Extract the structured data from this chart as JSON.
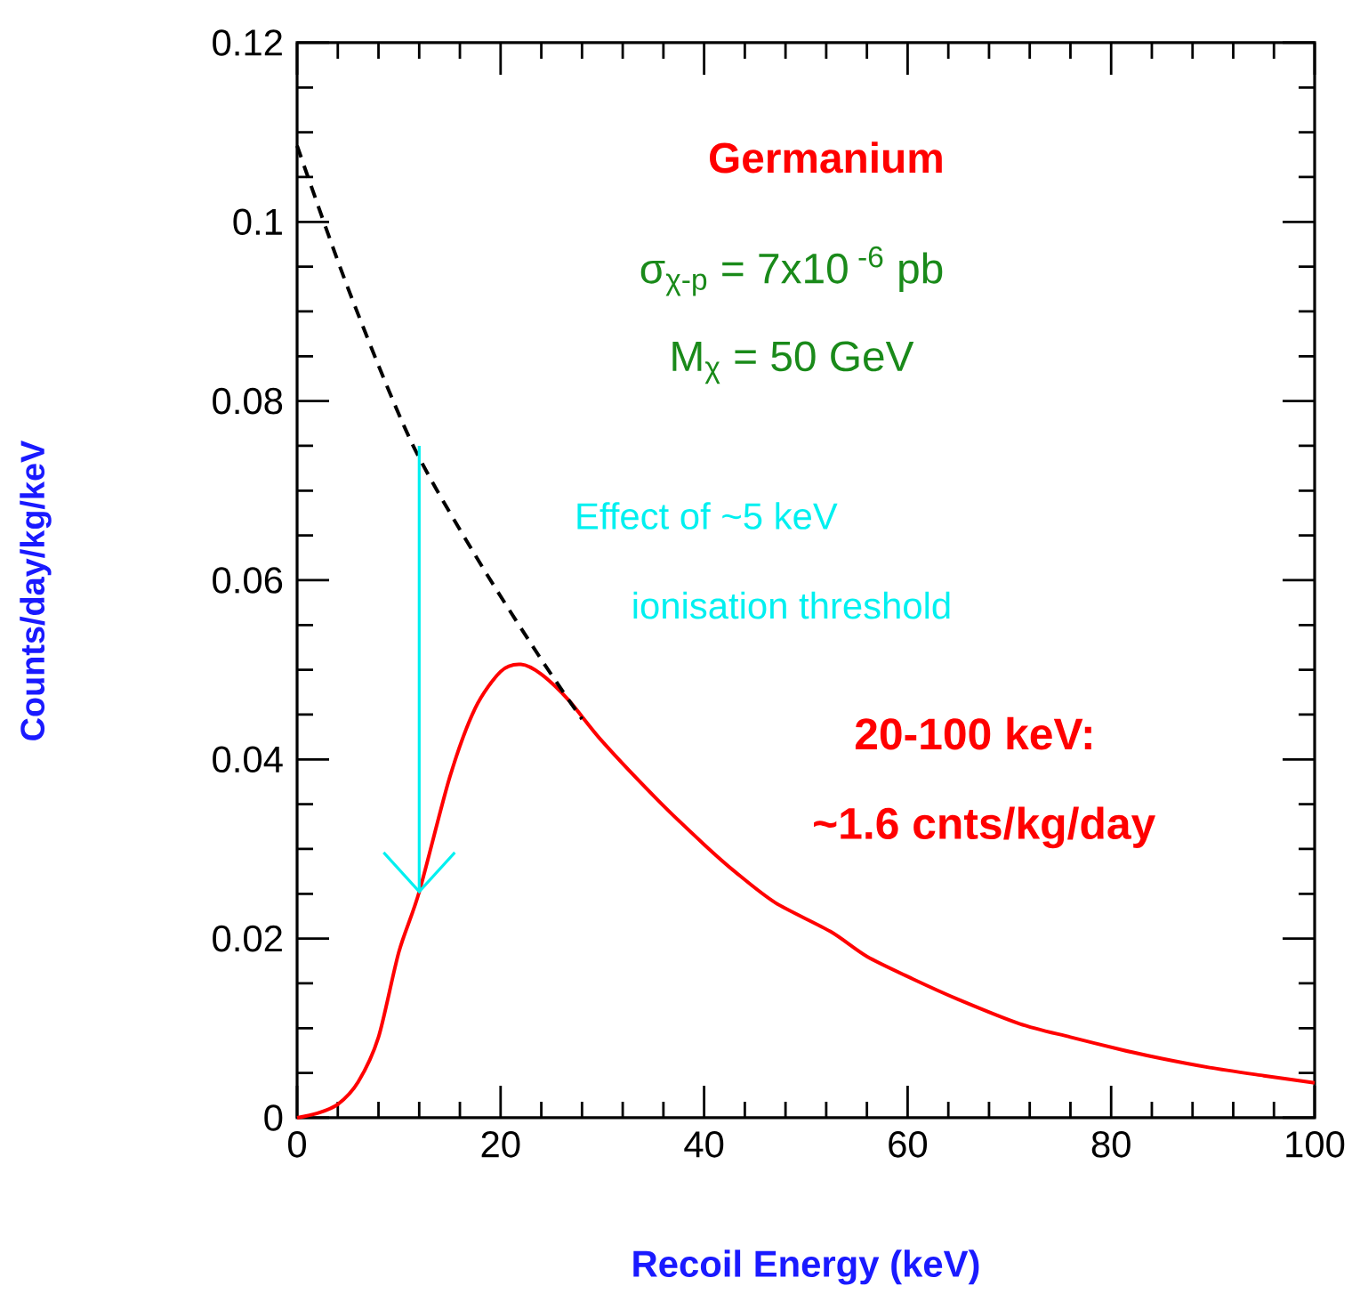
{
  "chart_data": {
    "type": "line",
    "xlabel": "Recoil Energy (keV)",
    "ylabel": "Counts/day/kg/keV",
    "xlim": [
      0,
      100
    ],
    "xticks": [
      0,
      20,
      40,
      60,
      80,
      100
    ],
    "ylim": [
      0,
      0.12
    ],
    "yticks": [
      0,
      0.02,
      0.04,
      0.06,
      0.08,
      0.1,
      0.12
    ],
    "series": [
      {
        "color": "#ff0000",
        "line_style": "solid",
        "x": [
          0,
          2,
          4,
          6,
          8,
          10,
          12,
          15,
          17.5,
          20,
          22,
          24,
          26.7,
          30,
          35.5,
          40,
          43.1,
          47,
          52.4,
          56,
          60.5,
          65,
          71,
          76,
          81,
          85,
          89.7,
          95,
          100
        ],
        "values": [
          0,
          0.0005,
          0.0015,
          0.004,
          0.009,
          0.0185,
          0.0252,
          0.038,
          0.0457,
          0.0498,
          0.0506,
          0.0495,
          0.0466,
          0.042,
          0.0354,
          0.0305,
          0.0274,
          0.024,
          0.0208,
          0.018,
          0.0155,
          0.0132,
          0.0105,
          0.009,
          0.0076,
          0.0066,
          0.0056,
          0.0047,
          0.0039
        ]
      },
      {
        "color": "#000000",
        "line_style": "dashed",
        "x": [
          0,
          5,
          11.2,
          17.5,
          23.8,
          28
        ],
        "values": [
          0.1085,
          0.0926,
          0.0755,
          0.0628,
          0.0515,
          0.0445
        ]
      }
    ],
    "annotations": [
      "Germanium",
      "σ$_{χ-p}$ = 7x10$^{ -6}$ pb",
      "M$_{χ}$ = 50 GeV",
      "Effect of  ~5 keV",
      "ionisation threshold",
      "20-100 keV:",
      "~1.6 cnts/kg/day"
    ],
    "grid": false,
    "marker": "none"
  }
}
